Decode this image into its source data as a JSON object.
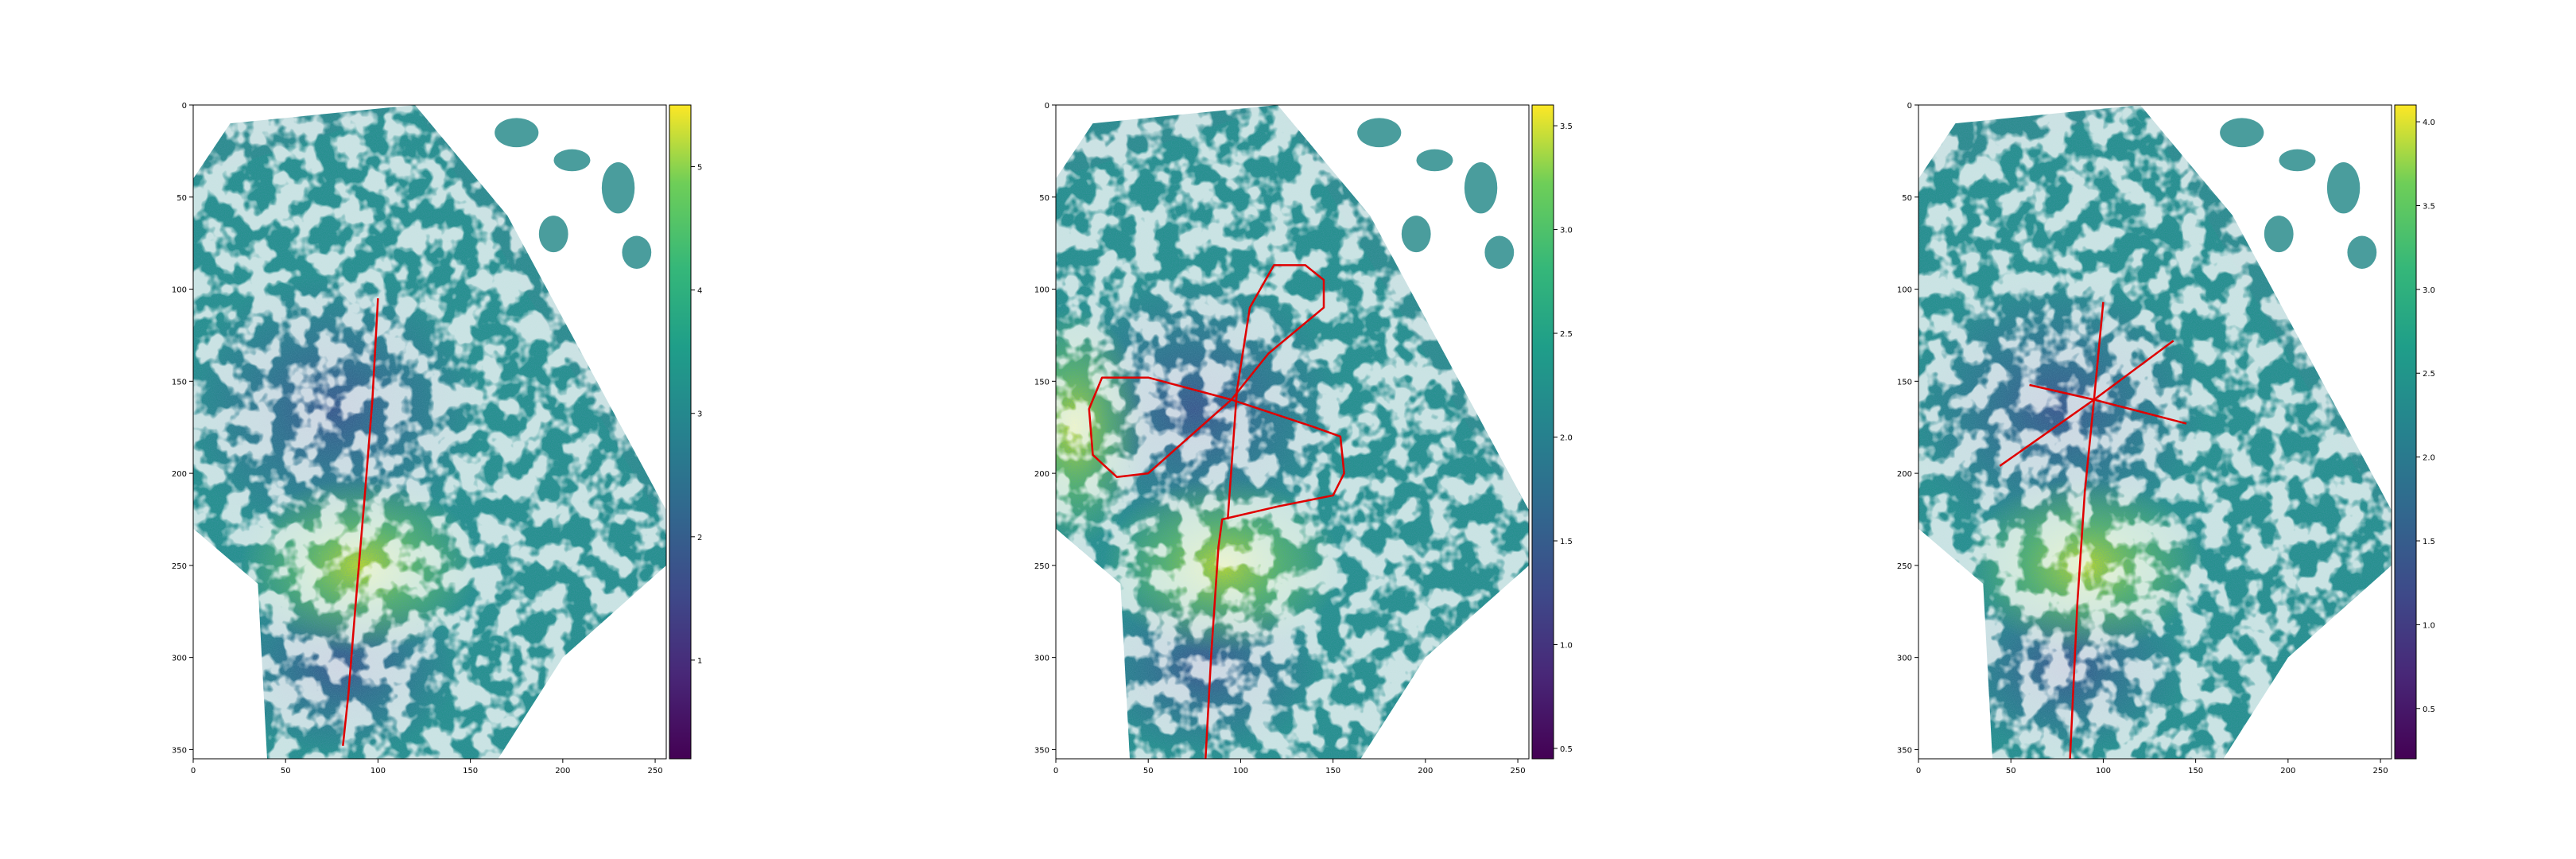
{
  "chart_data": [
    {
      "type": "heatmap",
      "title": "",
      "xlabel": "",
      "ylabel": "",
      "xlim": [
        0,
        256
      ],
      "ylim": [
        355,
        0
      ],
      "x_ticks": [
        0,
        50,
        100,
        150,
        200,
        250
      ],
      "y_ticks": [
        0,
        50,
        100,
        150,
        200,
        250,
        300,
        350
      ],
      "colormap": "viridis",
      "colorbar_range": [
        0.2,
        5.5
      ],
      "colorbar_ticks": [
        1,
        2,
        3,
        4,
        5
      ],
      "overlay_color": "#e00000",
      "overlay_path": [
        [
          100,
          105
        ],
        [
          97,
          160
        ],
        [
          93,
          210
        ],
        [
          88,
          270
        ],
        [
          84,
          320
        ],
        [
          81,
          348
        ]
      ]
    },
    {
      "type": "heatmap",
      "title": "",
      "xlabel": "",
      "ylabel": "",
      "xlim": [
        0,
        256
      ],
      "ylim": [
        355,
        0
      ],
      "x_ticks": [
        0,
        50,
        100,
        150,
        200,
        250
      ],
      "y_ticks": [
        0,
        50,
        100,
        150,
        200,
        250,
        300,
        350
      ],
      "colormap": "viridis",
      "colorbar_range": [
        0.45,
        3.6
      ],
      "colorbar_ticks": [
        0.5,
        1.0,
        1.5,
        2.0,
        2.5,
        3.0,
        3.5
      ],
      "overlay_color": "#e00000",
      "overlay_path": [
        [
          81,
          355
        ],
        [
          84,
          300
        ],
        [
          88,
          240
        ],
        [
          90,
          225
        ],
        [
          120,
          218
        ],
        [
          150,
          212
        ],
        [
          156,
          200
        ],
        [
          154,
          180
        ],
        [
          140,
          175
        ],
        [
          95,
          160
        ],
        [
          50,
          200
        ],
        [
          33,
          202
        ],
        [
          20,
          190
        ],
        [
          18,
          165
        ],
        [
          25,
          148
        ],
        [
          50,
          148
        ],
        [
          95,
          160
        ],
        [
          115,
          135
        ],
        [
          145,
          110
        ],
        [
          145,
          95
        ],
        [
          135,
          87
        ],
        [
          118,
          87
        ],
        [
          105,
          110
        ],
        [
          98,
          155
        ],
        [
          93,
          225
        ]
      ]
    },
    {
      "type": "heatmap",
      "title": "",
      "xlabel": "",
      "ylabel": "",
      "xlim": [
        0,
        256
      ],
      "ylim": [
        355,
        0
      ],
      "x_ticks": [
        0,
        50,
        100,
        150,
        200,
        250
      ],
      "y_ticks": [
        0,
        50,
        100,
        150,
        200,
        250,
        300,
        350
      ],
      "colormap": "viridis",
      "colorbar_range": [
        0.2,
        4.1
      ],
      "colorbar_ticks": [
        0.5,
        1.0,
        1.5,
        2.0,
        2.5,
        3.0,
        3.5,
        4.0
      ],
      "overlay_color": "#e00000",
      "overlay_paths": [
        [
          [
            100,
            107
          ],
          [
            95,
            160
          ],
          [
            90,
            210
          ],
          [
            86,
            270
          ],
          [
            82,
            355
          ]
        ],
        [
          [
            44,
            196
          ],
          [
            95,
            160
          ],
          [
            138,
            128
          ]
        ],
        [
          [
            60,
            152
          ],
          [
            95,
            160
          ],
          [
            145,
            173
          ]
        ]
      ]
    }
  ]
}
